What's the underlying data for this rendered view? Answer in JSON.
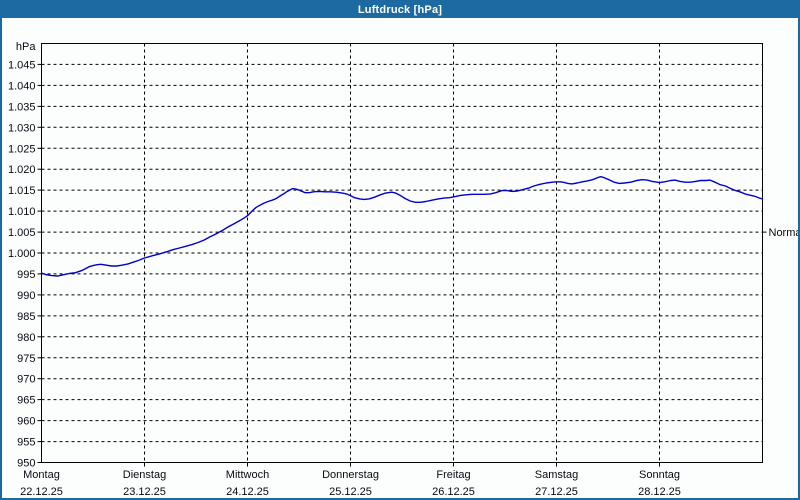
{
  "window": {
    "title": "Luftdruck [hPa]"
  },
  "colors": {
    "titlebar": "#1d6aa3",
    "window_border": "#1d6aa3",
    "title_text": "#ffffff",
    "background": "#fcfdfd",
    "grid": "#000000",
    "label_text": "#0a0a14",
    "line": "#0000cd"
  },
  "chart_data": {
    "type": "line",
    "title": "Luftdruck [hPa]",
    "ylabel": "hPa",
    "ylim": [
      950,
      1050
    ],
    "ytick_step": 5,
    "grid": "dashed",
    "legend": "none",
    "ytick_labels": [
      "1.045",
      "1.040",
      "1.035",
      "1.030",
      "1.025",
      "1.020",
      "1.015",
      "1.010",
      "1.005",
      "1.000",
      "995",
      "990",
      "985",
      "980",
      "975",
      "970",
      "965",
      "960",
      "955",
      "950"
    ],
    "xlabels": [
      {
        "name": "Montag",
        "date": "22.12.25"
      },
      {
        "name": "Dienstag",
        "date": "23.12.25"
      },
      {
        "name": "Mittwoch",
        "date": "24.12.25"
      },
      {
        "name": "Donnerstag",
        "date": "25.12.25"
      },
      {
        "name": "Freitag",
        "date": "26.12.25"
      },
      {
        "name": "Samstag",
        "date": "27.12.25"
      },
      {
        "name": "Sonntag",
        "date": "28.12.25"
      }
    ],
    "annotations": [
      {
        "label": "Normal",
        "y": 1005,
        "side": "right"
      }
    ],
    "series": [
      {
        "name": "Luftdruck",
        "unit": "hPa",
        "color": "#0000cd",
        "x_unit": "days since Montag 22.12.25 00:00",
        "points": [
          [
            0,
            995.2
          ],
          [
            0.05,
            994.8
          ],
          [
            0.1,
            994.6
          ],
          [
            0.16,
            994.5
          ],
          [
            0.21,
            994.8
          ],
          [
            0.27,
            995.1
          ],
          [
            0.33,
            995.3
          ],
          [
            0.39,
            995.8
          ],
          [
            0.43,
            996.3
          ],
          [
            0.47,
            996.8
          ],
          [
            0.5,
            997
          ],
          [
            0.54,
            997.2
          ],
          [
            0.58,
            997.3
          ],
          [
            0.63,
            997.1
          ],
          [
            0.68,
            996.9
          ],
          [
            0.73,
            996.9
          ],
          [
            0.78,
            997.1
          ],
          [
            0.84,
            997.4
          ],
          [
            0.89,
            997.8
          ],
          [
            0.94,
            998.2
          ],
          [
            1,
            998.8
          ],
          [
            1.07,
            999.3
          ],
          [
            1.15,
            999.8
          ],
          [
            1.23,
            1000.4
          ],
          [
            1.28,
            1000.8
          ],
          [
            1.34,
            1001.2
          ],
          [
            1.4,
            1001.6
          ],
          [
            1.46,
            1002
          ],
          [
            1.52,
            1002.5
          ],
          [
            1.58,
            1003.1
          ],
          [
            1.63,
            1003.8
          ],
          [
            1.69,
            1004.5
          ],
          [
            1.75,
            1005.3
          ],
          [
            1.81,
            1006.2
          ],
          [
            1.87,
            1007
          ],
          [
            1.93,
            1007.8
          ],
          [
            1.97,
            1008.4
          ],
          [
            2,
            1008.9
          ],
          [
            2.04,
            1009.9
          ],
          [
            2.08,
            1010.8
          ],
          [
            2.12,
            1011.4
          ],
          [
            2.16,
            1011.9
          ],
          [
            2.2,
            1012.3
          ],
          [
            2.24,
            1012.6
          ],
          [
            2.28,
            1013
          ],
          [
            2.31,
            1013.5
          ],
          [
            2.35,
            1014.1
          ],
          [
            2.38,
            1014.6
          ],
          [
            2.41,
            1015
          ],
          [
            2.44,
            1015.4
          ],
          [
            2.48,
            1015.2
          ],
          [
            2.52,
            1014.8
          ],
          [
            2.56,
            1014.4
          ],
          [
            2.6,
            1014.4
          ],
          [
            2.64,
            1014.6
          ],
          [
            2.69,
            1014.7
          ],
          [
            2.75,
            1014.6
          ],
          [
            2.8,
            1014.6
          ],
          [
            2.86,
            1014.5
          ],
          [
            2.92,
            1014.3
          ],
          [
            2.96,
            1014.1
          ],
          [
            3,
            1013.7
          ],
          [
            3.04,
            1013.2
          ],
          [
            3.09,
            1012.9
          ],
          [
            3.13,
            1012.8
          ],
          [
            3.18,
            1012.9
          ],
          [
            3.23,
            1013.3
          ],
          [
            3.29,
            1013.9
          ],
          [
            3.34,
            1014.3
          ],
          [
            3.4,
            1014.5
          ],
          [
            3.44,
            1014.3
          ],
          [
            3.48,
            1013.8
          ],
          [
            3.53,
            1013
          ],
          [
            3.58,
            1012.4
          ],
          [
            3.63,
            1012.1
          ],
          [
            3.68,
            1012.1
          ],
          [
            3.73,
            1012.3
          ],
          [
            3.79,
            1012.6
          ],
          [
            3.85,
            1012.9
          ],
          [
            3.91,
            1013.1
          ],
          [
            3.96,
            1013.2
          ],
          [
            4,
            1013.4
          ],
          [
            4.06,
            1013.7
          ],
          [
            4.12,
            1013.9
          ],
          [
            4.18,
            1014
          ],
          [
            4.24,
            1014
          ],
          [
            4.3,
            1014
          ],
          [
            4.36,
            1014.1
          ],
          [
            4.41,
            1014.4
          ],
          [
            4.47,
            1014.9
          ],
          [
            4.52,
            1014.9
          ],
          [
            4.57,
            1014.7
          ],
          [
            4.62,
            1014.8
          ],
          [
            4.67,
            1015.1
          ],
          [
            4.73,
            1015.5
          ],
          [
            4.78,
            1016
          ],
          [
            4.84,
            1016.4
          ],
          [
            4.9,
            1016.7
          ],
          [
            4.96,
            1016.9
          ],
          [
            5,
            1017
          ],
          [
            5.04,
            1017
          ],
          [
            5.08,
            1016.8
          ],
          [
            5.11,
            1016.6
          ],
          [
            5.15,
            1016.5
          ],
          [
            5.2,
            1016.7
          ],
          [
            5.25,
            1017
          ],
          [
            5.3,
            1017.2
          ],
          [
            5.35,
            1017.5
          ],
          [
            5.4,
            1018
          ],
          [
            5.43,
            1018.2
          ],
          [
            5.46,
            1018
          ],
          [
            5.51,
            1017.5
          ],
          [
            5.56,
            1016.9
          ],
          [
            5.61,
            1016.6
          ],
          [
            5.66,
            1016.7
          ],
          [
            5.72,
            1016.9
          ],
          [
            5.78,
            1017.3
          ],
          [
            5.83,
            1017.5
          ],
          [
            5.88,
            1017.4
          ],
          [
            5.93,
            1017.1
          ],
          [
            6,
            1016.8
          ],
          [
            6.05,
            1017
          ],
          [
            6.11,
            1017.3
          ],
          [
            6.15,
            1017.4
          ],
          [
            6.2,
            1017.1
          ],
          [
            6.25,
            1016.9
          ],
          [
            6.3,
            1016.9
          ],
          [
            6.35,
            1017.1
          ],
          [
            6.4,
            1017.3
          ],
          [
            6.45,
            1017.3
          ],
          [
            6.49,
            1017.4
          ],
          [
            6.54,
            1016.9
          ],
          [
            6.59,
            1016.3
          ],
          [
            6.64,
            1016
          ],
          [
            6.69,
            1015.4
          ],
          [
            6.74,
            1014.9
          ],
          [
            6.79,
            1014.5
          ],
          [
            6.83,
            1014.1
          ],
          [
            6.88,
            1013.8
          ],
          [
            6.93,
            1013.5
          ],
          [
            6.97,
            1013.1
          ],
          [
            7,
            1012.9
          ]
        ]
      }
    ]
  }
}
